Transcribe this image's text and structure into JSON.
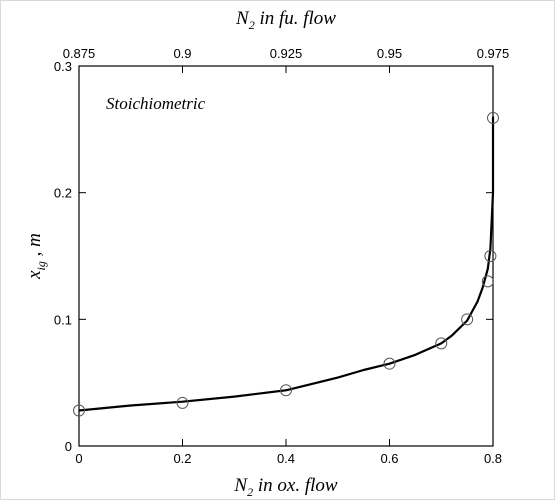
{
  "chart_data": {
    "type": "line",
    "annotation": "Stoichiometric",
    "x_axis_bottom": {
      "label_main": "N",
      "label_sub": "2",
      "label_rest": " in ox. flow",
      "range": [
        0,
        0.8
      ],
      "ticks": [
        0,
        0.2,
        0.4,
        0.6,
        0.8
      ],
      "tick_labels": [
        "0",
        "0.2",
        "0.4",
        "0.6",
        "0.8"
      ]
    },
    "x_axis_top": {
      "label_main": "N",
      "label_sub": "2",
      "label_rest": " in fu. flow",
      "range": [
        0.875,
        0.975
      ],
      "ticks": [
        0.875,
        0.9,
        0.925,
        0.95,
        0.975
      ],
      "tick_labels": [
        "0.875",
        "0.9",
        "0.925",
        "0.95",
        "0.975"
      ]
    },
    "y_axis": {
      "label_main": "x",
      "label_sub": "ig",
      "label_rest": " , m",
      "range": [
        0,
        0.3
      ],
      "ticks": [
        0,
        0.1,
        0.2,
        0.3
      ],
      "tick_labels": [
        "0",
        "0.1",
        "0.2",
        "0.3"
      ]
    },
    "series": [
      {
        "style": "solid-line",
        "x": [
          0,
          0.1,
          0.2,
          0.3,
          0.4,
          0.5,
          0.55,
          0.6,
          0.65,
          0.7,
          0.72,
          0.75,
          0.77,
          0.78,
          0.79,
          0.795,
          0.8,
          0.8
        ],
        "y": [
          0.028,
          0.032,
          0.035,
          0.039,
          0.044,
          0.054,
          0.06,
          0.065,
          0.072,
          0.081,
          0.087,
          0.099,
          0.114,
          0.125,
          0.14,
          0.156,
          0.2,
          0.26
        ]
      },
      {
        "style": "open-circle-markers",
        "x": [
          0,
          0.2,
          0.4,
          0.6,
          0.7,
          0.75,
          0.79,
          0.795,
          0.8
        ],
        "y": [
          0.028,
          0.034,
          0.044,
          0.065,
          0.081,
          0.1,
          0.13,
          0.15,
          0.259
        ]
      }
    ]
  }
}
